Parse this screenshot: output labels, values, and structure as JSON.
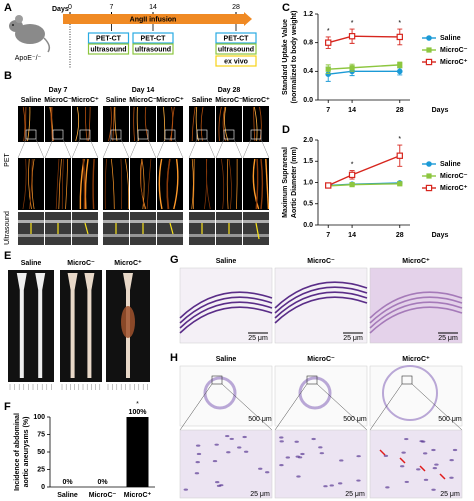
{
  "panel_labels": [
    "A",
    "B",
    "C",
    "D",
    "E",
    "F",
    "G",
    "H"
  ],
  "panel_a": {
    "mouse_label": "ApoE⁻/⁻",
    "days_label": "Days",
    "days": [
      0,
      7,
      14,
      28
    ],
    "infusion": "AngII infusion",
    "timepoints": [
      {
        "imaging": "PET-CT",
        "ultrasound": "ultrasound"
      },
      {
        "imaging": "PET-CT",
        "ultrasound": "ultrasound"
      },
      {
        "imaging": "PET-CT",
        "ultrasound": "ultrasound",
        "ex_vivo": "ex vivo"
      }
    ]
  },
  "panel_b": {
    "columns": [
      {
        "day": "Day 7",
        "groups": [
          "Saline",
          "MicroC⁻",
          "MicroC⁺"
        ]
      },
      {
        "day": "Day 14",
        "groups": [
          "Saline",
          "MicroC⁻",
          "MicroC⁺"
        ]
      },
      {
        "day": "Day 28",
        "groups": [
          "Saline",
          "MicroC⁻",
          "MicroC⁺"
        ]
      }
    ],
    "row_labels": [
      "PET",
      "Ultrasound"
    ]
  },
  "panel_e": {
    "groups": [
      "Saline",
      "MicroC⁻",
      "MicroC⁺"
    ]
  },
  "panel_g": {
    "groups": [
      "Saline",
      "MicroC⁻",
      "MicroC⁺"
    ],
    "scale_bars": [
      "25 μm",
      "25 μm",
      "25 μm"
    ]
  },
  "panel_h": {
    "groups": [
      "Saline",
      "MicroC⁻",
      "MicroC⁺"
    ],
    "scale_bars_top": [
      "500 μm",
      "500 μm",
      "500 μm"
    ],
    "scale_bars_bottom": [
      "25 μm",
      "25 μm",
      "25 μm"
    ]
  },
  "chart_data": [
    {
      "type": "line",
      "y_label": [
        "Standard Uptake Value",
        "(normalized to body weight)"
      ],
      "x_label": "Days",
      "x": [
        7,
        14,
        28
      ],
      "xlim": [
        4,
        31
      ],
      "xticks": [
        7,
        14,
        28
      ],
      "ylim": [
        0,
        1.2
      ],
      "yticks": [
        {
          "value": 0,
          "label": "0.0"
        },
        0.4,
        0.8,
        1.2
      ],
      "legend": "right",
      "series": [
        {
          "name": "Saline",
          "color": "#1b9ad6",
          "marker": "circle",
          "values": [
            0.36,
            0.4,
            0.4
          ],
          "errors": [
            0.1,
            0.06,
            0.05
          ]
        },
        {
          "name": "MicroC⁻",
          "color": "#8dc63f",
          "marker": "square",
          "values": [
            0.43,
            0.45,
            0.49
          ],
          "errors": [
            0.06,
            0.05,
            0.04
          ]
        },
        {
          "name": "MicroC⁺",
          "color": "#d7261e",
          "marker": "open-square",
          "values": [
            0.8,
            0.89,
            0.88
          ],
          "errors": [
            0.08,
            0.1,
            0.11
          ]
        }
      ],
      "annotations": [
        {
          "text": "*",
          "x": 7
        },
        {
          "text": "*",
          "x": 14
        },
        {
          "text": "*",
          "x": 28
        }
      ]
    },
    {
      "type": "line",
      "y_label": [
        "Maximum Suprarenal",
        "Aortic Diameter (mm)"
      ],
      "x_label": "Days",
      "x": [
        7,
        14,
        28
      ],
      "xlim": [
        4,
        31
      ],
      "xticks": [
        7,
        14,
        28
      ],
      "ylim": [
        0,
        2.0
      ],
      "yticks": [
        {
          "value": 0,
          "label": "0.0"
        },
        0.5,
        {
          "value": 1.0,
          "label": "1.0"
        },
        1.5,
        {
          "value": 2.0,
          "label": "2.0"
        }
      ],
      "legend": "right",
      "series": [
        {
          "name": "Saline",
          "color": "#1b9ad6",
          "marker": "circle",
          "values": [
            0.93,
            0.96,
            0.99
          ],
          "errors": [
            0.03,
            0.03,
            0.03
          ]
        },
        {
          "name": "MicroC⁻",
          "color": "#8dc63f",
          "marker": "square",
          "values": [
            0.92,
            0.95,
            0.97
          ],
          "errors": [
            0.03,
            0.03,
            0.03
          ]
        },
        {
          "name": "MicroC⁺",
          "color": "#d7261e",
          "marker": "open-square",
          "values": [
            0.93,
            1.18,
            1.63
          ],
          "errors": [
            0.04,
            0.1,
            0.25
          ]
        }
      ],
      "annotations": [
        {
          "text": "*",
          "x": 14
        },
        {
          "text": "*",
          "x": 28
        }
      ]
    },
    {
      "type": "bar",
      "y_label": [
        "Incidence of abdominal",
        "aortic aneurysms (%)"
      ],
      "categories": [
        "Saline",
        "MicroC⁻",
        "MicroC⁺"
      ],
      "values": [
        0,
        0,
        100
      ],
      "value_labels": [
        "0%",
        "0%",
        "100%"
      ],
      "color": "#000000",
      "ylim": [
        0,
        100
      ],
      "yticks": [
        0,
        25,
        50,
        75,
        100
      ],
      "annotations": [
        {
          "text": "*",
          "index": 2
        }
      ]
    }
  ]
}
